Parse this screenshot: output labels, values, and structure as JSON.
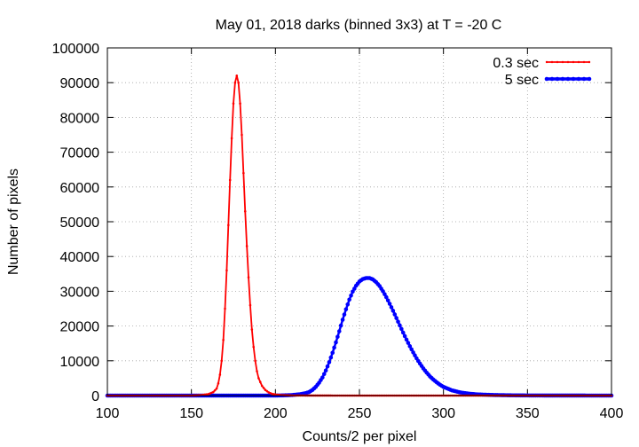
{
  "chart_data": {
    "type": "line",
    "title": "May 01, 2018 darks (binned 3x3) at T = -20 C",
    "xlabel": "Counts/2 per pixel",
    "ylabel": "Number of pixels",
    "xlim": [
      100,
      400
    ],
    "ylim": [
      0,
      100000
    ],
    "xticks": [
      100,
      150,
      200,
      250,
      300,
      350,
      400
    ],
    "yticks": [
      0,
      10000,
      20000,
      30000,
      40000,
      50000,
      60000,
      70000,
      80000,
      90000,
      100000
    ],
    "grid": true,
    "legend_position": "top-right",
    "series": [
      {
        "name": "0.3 sec",
        "color": "#ff0000",
        "marker": "small-dot",
        "x": [
          100,
          110,
          120,
          130,
          140,
          150,
          155,
          160,
          163,
          165,
          166,
          167,
          168,
          169,
          170,
          171,
          172,
          173,
          174,
          175,
          176,
          177,
          178,
          179,
          180,
          181,
          182,
          183,
          184,
          185,
          186,
          187,
          188,
          189,
          190,
          192,
          194,
          196,
          198,
          200,
          203,
          206,
          210,
          220,
          240,
          270,
          300,
          350,
          400
        ],
        "y": [
          0,
          0,
          0,
          0,
          0,
          0,
          100,
          400,
          1000,
          2000,
          3500,
          6000,
          10000,
          16000,
          25000,
          36000,
          49000,
          62000,
          74000,
          84000,
          90000,
          92000,
          90000,
          84000,
          75000,
          64000,
          53000,
          43000,
          34000,
          26000,
          19000,
          14000,
          10000,
          7000,
          5000,
          2800,
          1600,
          900,
          500,
          300,
          150,
          80,
          30,
          10,
          0,
          0,
          0,
          0,
          0
        ]
      },
      {
        "name": "5 sec",
        "color": "#0000ff",
        "marker": "filled-circle",
        "x": [
          100,
          110,
          120,
          130,
          140,
          150,
          160,
          170,
          180,
          190,
          200,
          205,
          210,
          215,
          218,
          220,
          222,
          224,
          226,
          228,
          230,
          232,
          234,
          236,
          238,
          240,
          242,
          244,
          246,
          248,
          250,
          252,
          254,
          256,
          258,
          260,
          262,
          264,
          266,
          268,
          270,
          272,
          274,
          276,
          278,
          280,
          282,
          284,
          286,
          288,
          290,
          292,
          294,
          296,
          298,
          300,
          305,
          310,
          315,
          320,
          330,
          340,
          350,
          360,
          370,
          380,
          390,
          400
        ],
        "y": [
          0,
          0,
          0,
          0,
          0,
          0,
          0,
          0,
          0,
          0,
          0,
          50,
          150,
          400,
          700,
          1000,
          1600,
          2500,
          3700,
          5200,
          7200,
          9600,
          12300,
          15300,
          18500,
          21800,
          24800,
          27600,
          29900,
          31600,
          32800,
          33500,
          33800,
          33800,
          33400,
          32600,
          31500,
          30000,
          28300,
          26400,
          24400,
          22300,
          20200,
          18100,
          16100,
          14200,
          12400,
          10700,
          9200,
          7800,
          6600,
          5500,
          4600,
          3800,
          3100,
          2500,
          1500,
          900,
          550,
          330,
          150,
          70,
          30,
          15,
          8,
          4,
          2,
          1
        ]
      }
    ]
  }
}
